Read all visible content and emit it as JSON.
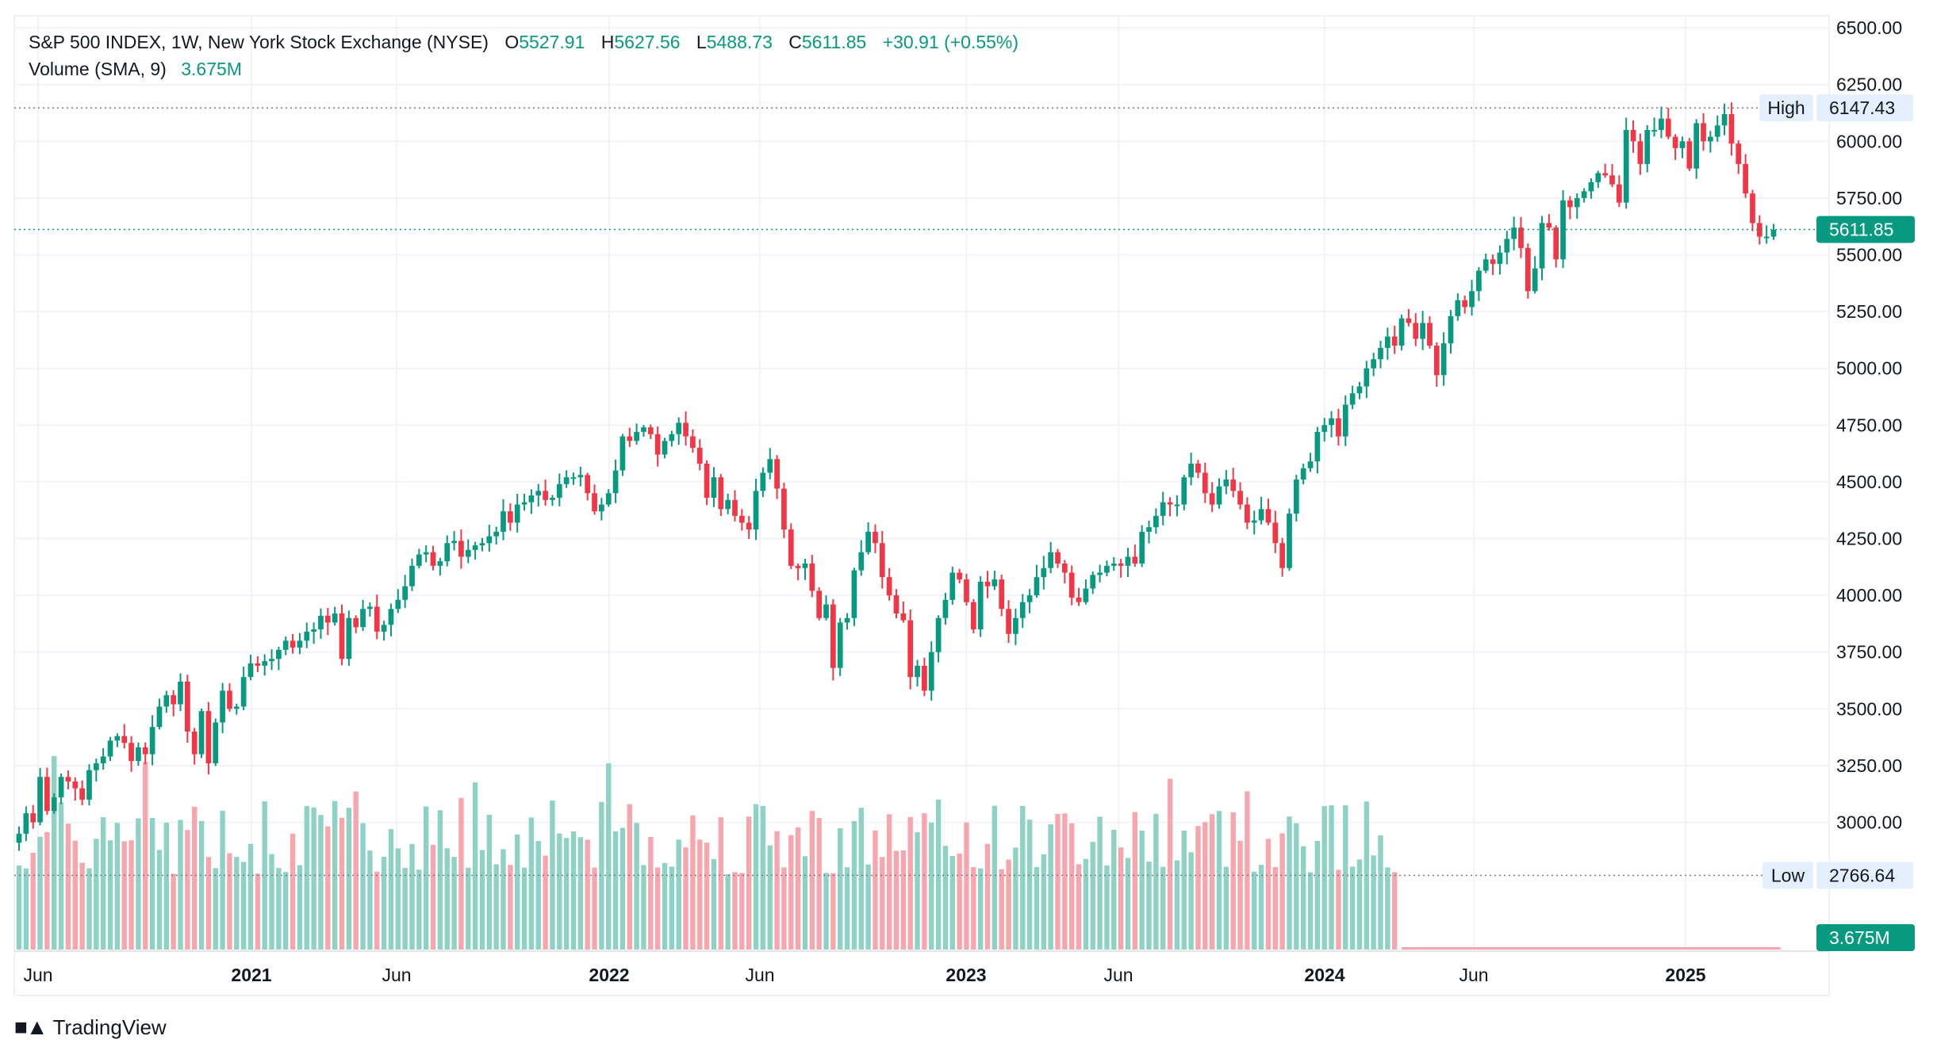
{
  "header": {
    "symbol": "S&P 500 INDEX, 1W, New York Stock Exchange (NYSE)",
    "open_label": "O",
    "open": "5527.91",
    "high_label": "H",
    "high": "5627.56",
    "low_label": "L",
    "low": "5488.73",
    "close_label": "C",
    "close": "5611.85",
    "change": "+30.91 (+0.55%)",
    "volume_label": "Volume (SMA, 9)",
    "volume_value": "3.675M"
  },
  "markers": {
    "high_label": "High",
    "high_value": "6147.43",
    "low_label": "Low",
    "low_value": "2766.64",
    "last_price": "5611.85",
    "last_volume": "3.675M"
  },
  "brand": {
    "name": "TradingView"
  },
  "colors": {
    "up": "#089981",
    "down": "#F23645",
    "up_vol": "#8ed2c5",
    "down_vol": "#f8a6ad",
    "grid": "#f0f3fa",
    "axis_text": "#131722"
  },
  "chart_data": {
    "type": "candlestick",
    "interval": "1W",
    "y_axis": {
      "position": "right",
      "min": 2766.64,
      "max": 6500,
      "ticks": [
        6500,
        6250,
        6000,
        5750,
        5500,
        5250,
        5000,
        4750,
        4500,
        4250,
        4000,
        3750,
        3500,
        3250,
        3000
      ]
    },
    "y_tick_labels": [
      "6500.00",
      "6250.00",
      "6000.00",
      "5750.00",
      "5500.00",
      "5250.00",
      "5000.00",
      "4750.00",
      "4500.00",
      "4250.00",
      "4000.00",
      "3750.00",
      "3500.00",
      "3250.00",
      "3000.00"
    ],
    "x_tick_labels": [
      {
        "label": "Jun",
        "bold": false,
        "date": "2020-06"
      },
      {
        "label": "2021",
        "bold": true,
        "date": "2021-01"
      },
      {
        "label": "Jun",
        "bold": false,
        "date": "2021-06"
      },
      {
        "label": "2022",
        "bold": true,
        "date": "2022-01"
      },
      {
        "label": "Jun",
        "bold": false,
        "date": "2022-06"
      },
      {
        "label": "2023",
        "bold": true,
        "date": "2023-01"
      },
      {
        "label": "Jun",
        "bold": false,
        "date": "2023-06"
      },
      {
        "label": "2024",
        "bold": true,
        "date": "2024-01"
      },
      {
        "label": "Jun",
        "bold": false,
        "date": "2024-06"
      },
      {
        "label": "2025",
        "bold": true,
        "date": "2025-01"
      }
    ],
    "weekly_close": [
      2950,
      3040,
      3000,
      3200,
      3050,
      3110,
      3200,
      3180,
      3150,
      3100,
      3230,
      3260,
      3290,
      3360,
      3380,
      3350,
      3270,
      3330,
      3300,
      3420,
      3510,
      3560,
      3520,
      3620,
      3400,
      3300,
      3490,
      3260,
      3440,
      3580,
      3500,
      3510,
      3640,
      3700,
      3690,
      3710,
      3720,
      3760,
      3800,
      3770,
      3800,
      3840,
      3850,
      3910,
      3880,
      3920,
      3720,
      3900,
      3860,
      3940,
      3950,
      3840,
      3870,
      3940,
      3980,
      4040,
      4130,
      4180,
      4190,
      4130,
      4150,
      4230,
      4240,
      4170,
      4200,
      4220,
      4230,
      4260,
      4280,
      4370,
      4320,
      4400,
      4410,
      4440,
      4460,
      4420,
      4430,
      4490,
      4520,
      4520,
      4530,
      4450,
      4370,
      4400,
      4450,
      4550,
      4700,
      4680,
      4720,
      4740,
      4710,
      4620,
      4680,
      4710,
      4760,
      4700,
      4650,
      4580,
      4430,
      4520,
      4380,
      4420,
      4350,
      4320,
      4290,
      4460,
      4540,
      4600,
      4470,
      4290,
      4130,
      4120,
      4140,
      4020,
      3900,
      3960,
      3680,
      3880,
      3900,
      4110,
      4190,
      4280,
      4230,
      4080,
      4000,
      3920,
      3890,
      3640,
      3690,
      3580,
      3750,
      3900,
      3980,
      4100,
      4070,
      3970,
      3850,
      4060,
      4040,
      4070,
      3940,
      3830,
      3900,
      3970,
      4000,
      4080,
      4120,
      4190,
      4140,
      4100,
      3990,
      3970,
      4030,
      4090,
      4100,
      4130,
      4140,
      4130,
      4170,
      4140,
      4280,
      4300,
      4350,
      4410,
      4400,
      4400,
      4520,
      4580,
      4540,
      4450,
      4400,
      4480,
      4510,
      4460,
      4400,
      4320,
      4330,
      4380,
      4320,
      4230,
      4120,
      4360,
      4510,
      4560,
      4590,
      4720,
      4750,
      4780,
      4700,
      4840,
      4890,
      4920,
      5000,
      5040,
      5090,
      5140,
      5100,
      5220,
      5200,
      5130,
      5200,
      5100,
      4970,
      5110,
      5230,
      5300,
      5270,
      5340,
      5430,
      5480,
      5460,
      5510,
      5570,
      5620,
      5530,
      5340,
      5440,
      5640,
      5620,
      5480,
      5740,
      5710,
      5750,
      5780,
      5820,
      5860,
      5850,
      5810,
      5730,
      6050,
      6000,
      5900,
      6050,
      6050,
      6100,
      6020,
      5970,
      6000,
      5880,
      6080,
      6000,
      6020,
      6070,
      6120,
      5990,
      5900,
      5770,
      5640,
      5580,
      5580,
      5610
    ],
    "volume_note": "Weekly volume histogram; visible ~2020-06 to 2024-09",
    "range": {
      "high": 6147.43,
      "low": 2766.64,
      "last": 5611.85
    }
  }
}
